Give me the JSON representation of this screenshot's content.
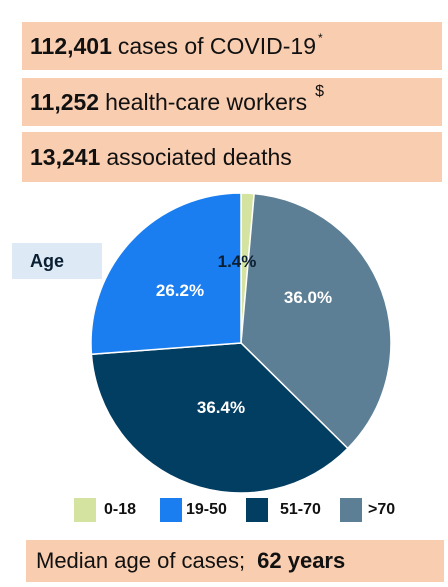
{
  "stats": [
    {
      "number": "112,401",
      "text": "cases of COVID-19",
      "mark": "*"
    },
    {
      "number": "11,252",
      "text": "health-care workers",
      "mark": "$"
    },
    {
      "number": "13,241",
      "text": "associated deaths",
      "mark": ""
    }
  ],
  "age_label": "Age",
  "chart_data": {
    "type": "pie",
    "categories": [
      "0-18",
      "19-50",
      "51-70",
      ">70"
    ],
    "values": [
      1.4,
      26.2,
      36.4,
      36.0
    ],
    "data_labels": [
      "1.4%",
      "26.2%",
      "36.4%",
      "36.0%"
    ],
    "colors": [
      "#d5e3a1",
      "#1a7ef0",
      "#023d62",
      "#5d7f95"
    ],
    "legend": "bottom"
  },
  "median": {
    "label": "Median age of cases;",
    "value": "62 years"
  }
}
